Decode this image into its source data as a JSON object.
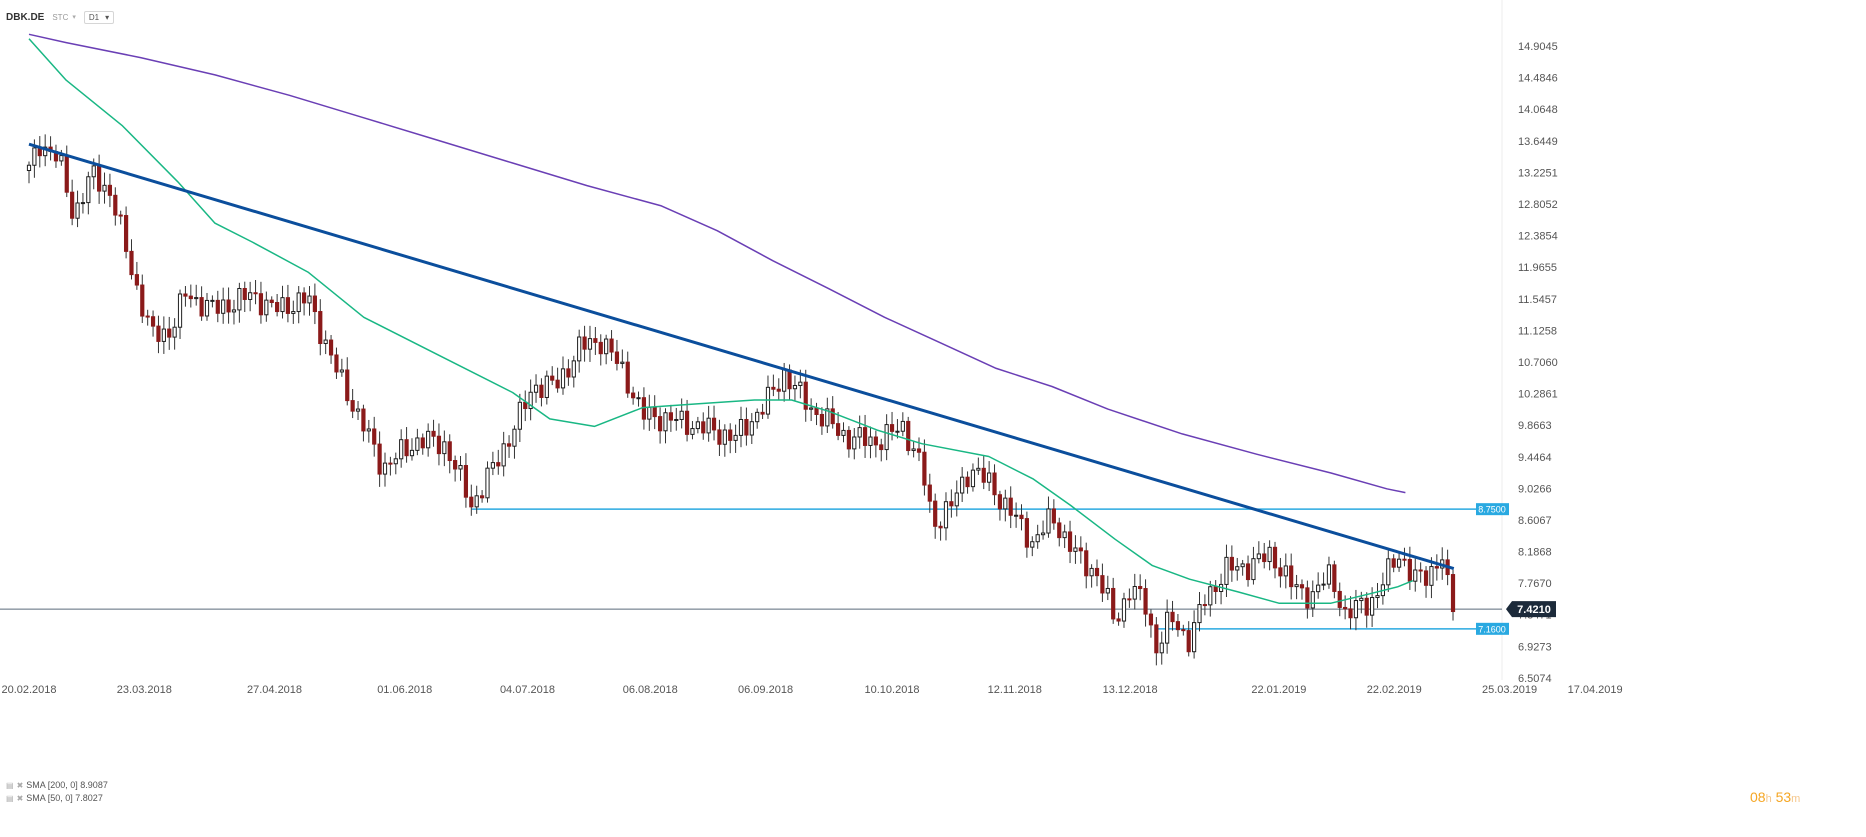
{
  "header": {
    "symbol": "DBK.DE",
    "type_label": "STC",
    "timeframe": "D1"
  },
  "legend": [
    {
      "label": "SMA [200, 0] 8.9087"
    },
    {
      "label": "SMA [50, 0] 7.8027"
    }
  ],
  "timer": {
    "hours": "08",
    "h": "h",
    "minutes": "53",
    "m": "m"
  },
  "colors": {
    "sma200": "#6a3fb5",
    "sma50": "#19b784",
    "trendline": "#0b4e9c",
    "level": "#29a9e1",
    "bull": "#1f1f1f",
    "bear": "#8b1a1a",
    "price_badge": "#1c2a3a"
  },
  "chart_data": {
    "type": "candlestick",
    "symbol": "DBK.DE",
    "timeframe": "D1",
    "y_ticks": [
      14.9045,
      14.4846,
      14.0648,
      13.6449,
      13.2251,
      12.8052,
      12.3854,
      11.9655,
      11.5457,
      11.1258,
      10.706,
      10.2861,
      9.8663,
      9.4464,
      9.0266,
      8.6067,
      8.1868,
      7.767,
      7.3471,
      6.9273,
      6.5074
    ],
    "y_tick_labels": [
      "14.9045",
      "14.4846",
      "14.0648",
      "13.6449",
      "13.2251",
      "12.8052",
      "12.3854",
      "11.9655",
      "11.5457",
      "11.1258",
      "10.7060",
      "10.2861",
      "9.8663",
      "9.4464",
      "9.0266",
      "8.6067",
      "8.1868",
      "7.7670",
      "7.3471",
      "6.9273",
      "6.5074"
    ],
    "x_ticks": [
      "20.02.2018",
      "23.03.2018",
      "27.04.2018",
      "01.06.2018",
      "04.07.2018",
      "06.08.2018",
      "06.09.2018",
      "10.10.2018",
      "12.11.2018",
      "13.12.2018",
      "22.01.2019",
      "22.02.2019",
      "25.03.2019",
      "17.04.2019"
    ],
    "x_tick_days": [
      0,
      31,
      66,
      101,
      134,
      167,
      198,
      232,
      265,
      296,
      336,
      367,
      398,
      421
    ],
    "current_price": 7.421,
    "current_price_label": "7.4210",
    "levels": [
      {
        "value": 8.75,
        "label": "8.7500",
        "from_day": 119
      },
      {
        "value": 7.16,
        "label": "7.1600",
        "from_day": 303
      }
    ],
    "trendline": {
      "points": [
        [
          0,
          13.6
        ],
        [
          383,
          7.96
        ]
      ]
    },
    "sma200": {
      "name": "SMA [200, 0]",
      "points": [
        [
          0,
          15.06
        ],
        [
          10,
          14.95
        ],
        [
          30,
          14.75
        ],
        [
          50,
          14.52
        ],
        [
          70,
          14.25
        ],
        [
          90,
          13.95
        ],
        [
          110,
          13.65
        ],
        [
          130,
          13.35
        ],
        [
          150,
          13.05
        ],
        [
          170,
          12.78
        ],
        [
          185,
          12.45
        ],
        [
          200,
          12.05
        ],
        [
          215,
          11.68
        ],
        [
          230,
          11.3
        ],
        [
          245,
          10.96
        ],
        [
          260,
          10.62
        ],
        [
          275,
          10.38
        ],
        [
          290,
          10.08
        ],
        [
          310,
          9.75
        ],
        [
          330,
          9.48
        ],
        [
          350,
          9.23
        ],
        [
          365,
          9.02
        ],
        [
          370,
          8.97
        ]
      ]
    },
    "sma50": {
      "name": "SMA [50, 0]",
      "points": [
        [
          0,
          15.0
        ],
        [
          10,
          14.45
        ],
        [
          25,
          13.85
        ],
        [
          40,
          13.1
        ],
        [
          50,
          12.55
        ],
        [
          60,
          12.3
        ],
        [
          75,
          11.9
        ],
        [
          90,
          11.3
        ],
        [
          110,
          10.8
        ],
        [
          130,
          10.3
        ],
        [
          140,
          9.95
        ],
        [
          152,
          9.85
        ],
        [
          165,
          10.1
        ],
        [
          180,
          10.15
        ],
        [
          195,
          10.2
        ],
        [
          205,
          10.2
        ],
        [
          215,
          10.05
        ],
        [
          228,
          9.8
        ],
        [
          240,
          9.62
        ],
        [
          258,
          9.45
        ],
        [
          270,
          9.15
        ],
        [
          280,
          8.8
        ],
        [
          292,
          8.35
        ],
        [
          302,
          8.0
        ],
        [
          312,
          7.82
        ],
        [
          325,
          7.65
        ],
        [
          336,
          7.5
        ],
        [
          350,
          7.5
        ],
        [
          360,
          7.62
        ],
        [
          368,
          7.72
        ],
        [
          372,
          7.8
        ]
      ]
    },
    "pivots": [
      [
        0,
        13.25
      ],
      [
        3,
        13.62
      ],
      [
        8,
        13.4
      ],
      [
        12,
        12.65
      ],
      [
        17,
        13.2
      ],
      [
        22,
        12.95
      ],
      [
        28,
        11.85
      ],
      [
        33,
        11.05
      ],
      [
        38,
        11.12
      ],
      [
        42,
        11.6
      ],
      [
        50,
        11.4
      ],
      [
        60,
        11.6
      ],
      [
        66,
        11.4
      ],
      [
        75,
        11.55
      ],
      [
        83,
        10.55
      ],
      [
        90,
        9.85
      ],
      [
        95,
        9.3
      ],
      [
        105,
        9.68
      ],
      [
        112,
        9.6
      ],
      [
        119,
        8.8
      ],
      [
        126,
        9.4
      ],
      [
        131,
        9.9
      ],
      [
        136,
        10.4
      ],
      [
        142,
        10.4
      ],
      [
        148,
        10.9
      ],
      [
        154,
        11.0
      ],
      [
        160,
        10.55
      ],
      [
        165,
        10.0
      ],
      [
        172,
        9.95
      ],
      [
        180,
        9.85
      ],
      [
        190,
        9.7
      ],
      [
        198,
        10.15
      ],
      [
        203,
        10.55
      ],
      [
        210,
        10.1
      ],
      [
        220,
        9.7
      ],
      [
        228,
        9.65
      ],
      [
        235,
        9.85
      ],
      [
        240,
        9.3
      ],
      [
        243,
        8.55
      ],
      [
        248,
        8.8
      ],
      [
        253,
        9.3
      ],
      [
        258,
        9.1
      ],
      [
        264,
        8.7
      ],
      [
        270,
        8.3
      ],
      [
        275,
        8.65
      ],
      [
        282,
        8.1
      ],
      [
        287,
        7.9
      ],
      [
        292,
        7.25
      ],
      [
        296,
        7.7
      ],
      [
        300,
        7.5
      ],
      [
        303,
        6.9
      ],
      [
        307,
        7.3
      ],
      [
        312,
        7.0
      ],
      [
        316,
        7.55
      ],
      [
        322,
        7.95
      ],
      [
        328,
        8.0
      ],
      [
        334,
        8.15
      ],
      [
        340,
        7.7
      ],
      [
        345,
        7.6
      ],
      [
        350,
        7.9
      ],
      [
        354,
        7.3
      ],
      [
        358,
        7.5
      ],
      [
        362,
        7.55
      ],
      [
        368,
        8.2
      ],
      [
        372,
        7.8
      ],
      [
        376,
        7.9
      ],
      [
        380,
        8.1
      ],
      [
        382,
        7.5
      ],
      [
        384,
        7.42
      ]
    ]
  }
}
